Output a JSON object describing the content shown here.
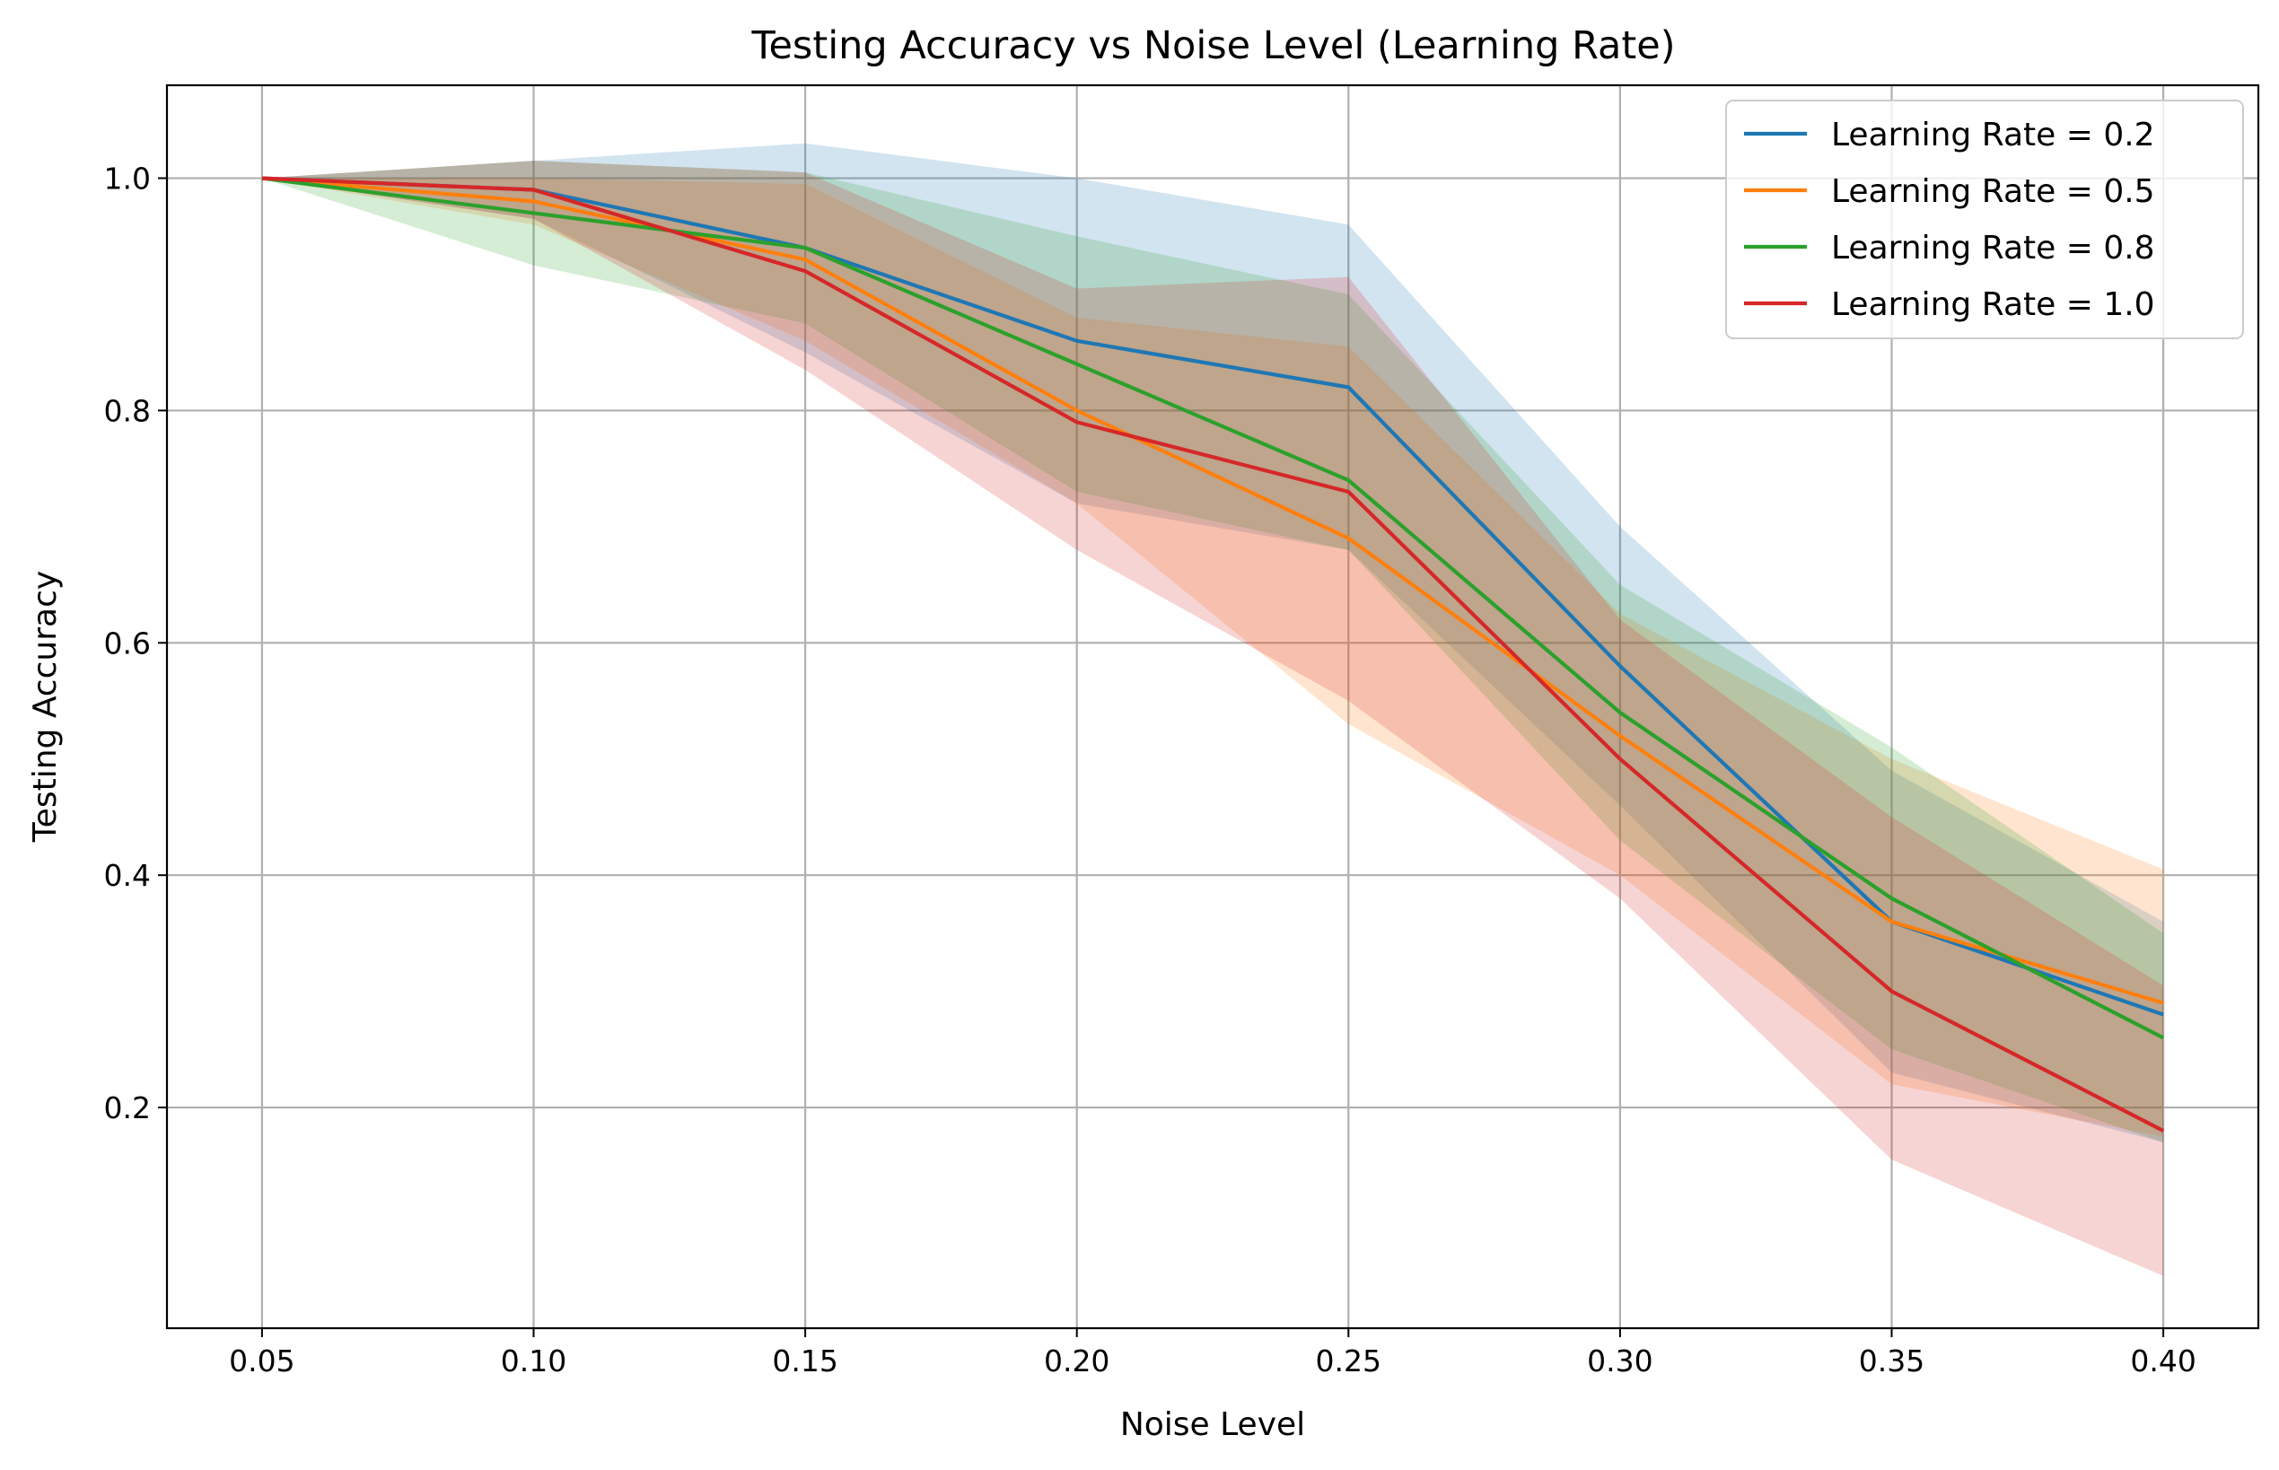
{
  "chart_data": {
    "type": "line",
    "title": "Testing Accuracy vs Noise Level (Learning Rate)",
    "xlabel": "Noise Level",
    "ylabel": "Testing Accuracy",
    "x": [
      0.05,
      0.1,
      0.15,
      0.2,
      0.25,
      0.3,
      0.35,
      0.4
    ],
    "x_tick_labels": [
      "0.05",
      "0.10",
      "0.15",
      "0.20",
      "0.25",
      "0.30",
      "0.35",
      "0.40"
    ],
    "y_ticks": [
      0.2,
      0.4,
      0.6,
      0.8,
      1.0
    ],
    "y_tick_labels": [
      "0.2",
      "0.4",
      "0.6",
      "0.8",
      "1.0"
    ],
    "xlim": [
      0.0325,
      0.4175
    ],
    "ylim": [
      0.01,
      1.08
    ],
    "grid": true,
    "legend_position": "top-right",
    "series": [
      {
        "name": "Learning Rate = 0.2",
        "color": "#1f77b4",
        "values": [
          1.0,
          0.99,
          0.94,
          0.86,
          0.82,
          0.58,
          0.36,
          0.28
        ],
        "lower": [
          1.0,
          0.965,
          0.85,
          0.72,
          0.68,
          0.46,
          0.23,
          0.17
        ],
        "upper": [
          1.0,
          1.015,
          1.03,
          1.0,
          0.96,
          0.7,
          0.49,
          0.36
        ]
      },
      {
        "name": "Learning Rate = 0.5",
        "color": "#ff7f0e",
        "values": [
          1.0,
          0.98,
          0.93,
          0.8,
          0.69,
          0.52,
          0.36,
          0.29
        ],
        "lower": [
          1.0,
          0.96,
          0.86,
          0.72,
          0.53,
          0.4,
          0.22,
          0.175
        ],
        "upper": [
          1.0,
          1.0,
          0.995,
          0.88,
          0.855,
          0.625,
          0.5,
          0.405
        ]
      },
      {
        "name": "Learning Rate = 0.8",
        "color": "#2ca02c",
        "values": [
          1.0,
          0.97,
          0.94,
          0.84,
          0.74,
          0.54,
          0.38,
          0.26
        ],
        "lower": [
          1.0,
          0.925,
          0.875,
          0.73,
          0.68,
          0.43,
          0.25,
          0.17
        ],
        "upper": [
          1.0,
          1.015,
          1.005,
          0.95,
          0.9,
          0.65,
          0.51,
          0.35
        ]
      },
      {
        "name": "Learning Rate = 1.0",
        "color": "#d62728",
        "values": [
          1.0,
          0.99,
          0.92,
          0.79,
          0.73,
          0.5,
          0.3,
          0.18
        ],
        "lower": [
          1.0,
          0.965,
          0.835,
          0.68,
          0.55,
          0.38,
          0.155,
          0.055
        ],
        "upper": [
          1.0,
          1.015,
          1.005,
          0.905,
          0.915,
          0.62,
          0.45,
          0.305
        ]
      }
    ]
  }
}
